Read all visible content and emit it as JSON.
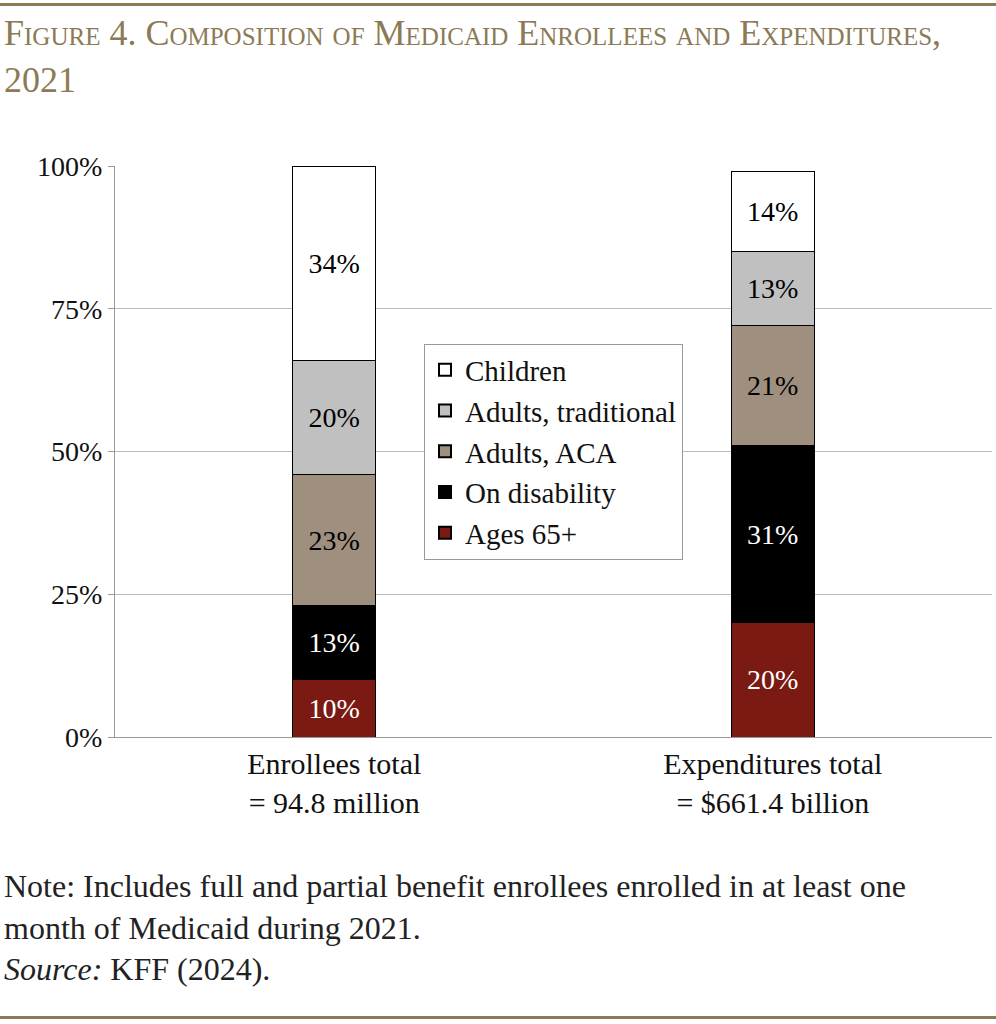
{
  "chart_data": {
    "type": "bar",
    "stacked": true,
    "title": "Figure 4. Composition of Medicaid Enrollees and Expenditures, 2021",
    "categories": [
      "Enrollees total = 94.8 million",
      "Expenditures total = $661.4 billion"
    ],
    "series": [
      {
        "name": "Ages 65+",
        "color": "#7a1a12",
        "values": [
          10,
          20
        ],
        "value_labels": [
          "10%",
          "20%"
        ]
      },
      {
        "name": "On disability",
        "color": "#000000",
        "values": [
          13,
          31
        ],
        "value_labels": [
          "13%",
          "31%"
        ]
      },
      {
        "name": "Adults, ACA",
        "color": "#9f8f7f",
        "values": [
          23,
          21
        ],
        "value_labels": [
          "23%",
          "21%"
        ]
      },
      {
        "name": "Adults, traditional",
        "color": "#c0c0c0",
        "values": [
          20,
          13
        ],
        "value_labels": [
          "20%",
          "13%"
        ]
      },
      {
        "name": "Children",
        "color": "#ffffff",
        "values": [
          34,
          14
        ],
        "value_labels": [
          "34%",
          "14%"
        ]
      }
    ],
    "ylim": [
      0,
      100
    ],
    "yticks": [
      {
        "value": 0,
        "label": "0%"
      },
      {
        "value": 25,
        "label": "25%"
      },
      {
        "value": 50,
        "label": "50%"
      },
      {
        "value": 75,
        "label": "75%"
      },
      {
        "value": 100,
        "label": "100%"
      }
    ],
    "grid": true,
    "legend": "center",
    "data_labels": true,
    "note": "Note: Includes full and partial benefit enrollees enrolled in at least one month of Medicaid during 2021.",
    "source": {
      "label": "Source:",
      "text": "KFF (2024)."
    }
  }
}
